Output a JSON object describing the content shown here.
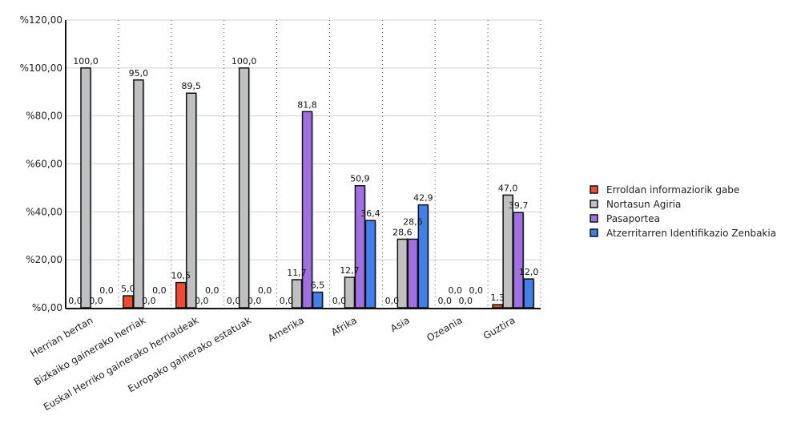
{
  "chart_data": {
    "type": "bar",
    "title": "",
    "xlabel": "",
    "ylabel": "",
    "ylim": [
      0,
      120
    ],
    "yticks": [
      "%0,00",
      "%20,00",
      "%40,00",
      "%60,00",
      "%80,00",
      "%100,00",
      "%120,00"
    ],
    "ytick_values": [
      0,
      20,
      40,
      60,
      80,
      100,
      120
    ],
    "grid": true,
    "legend_position": "right",
    "categories": [
      "Herrian bertan",
      "Bizkaiko gainerako herriak",
      "Euskal Herriko gainerako herrialdeak",
      "Europako gainerako estatuak",
      "Amerika",
      "Afrika",
      "Asia",
      "Ozeania",
      "Guztira"
    ],
    "series": [
      {
        "name": "Erroldan informaziorik gabe",
        "color": "#f04a30",
        "values": [
          0,
          5,
          10.5,
          0,
          0,
          0,
          0,
          0,
          1.3
        ],
        "labels": [
          "0,0",
          "5,0",
          "10,5",
          "0,0",
          "0,0",
          "0,0",
          "0,0",
          "0,0",
          "1,3"
        ]
      },
      {
        "name": "Nortasun Agiria",
        "color": "#c0c0c0",
        "values": [
          100,
          95,
          89.5,
          100,
          11.7,
          12.7,
          28.6,
          0,
          47
        ],
        "labels": [
          "100,0",
          "95,0",
          "89,5",
          "100,0",
          "11,7",
          "12,7",
          "28,6",
          "0,0",
          "47,0"
        ]
      },
      {
        "name": "Pasaportea",
        "color": "#a070e0",
        "values": [
          0,
          0,
          0,
          0,
          81.8,
          50.9,
          28.6,
          0,
          39.7
        ],
        "labels": [
          "0,0",
          "0,0",
          "0,0",
          "0,0",
          "81,8",
          "50,9",
          "28,6",
          "0,0",
          "39,7"
        ]
      },
      {
        "name": "Atzerritarren Identifikazio Zenbakia",
        "color": "#4080e8",
        "values": [
          0,
          0,
          0,
          0,
          6.5,
          36.4,
          42.9,
          0,
          12
        ],
        "labels": [
          "0,0",
          "0,0",
          "0,0",
          "0,0",
          "6,5",
          "36,4",
          "42,9",
          "0,0",
          "12,0"
        ]
      }
    ]
  }
}
